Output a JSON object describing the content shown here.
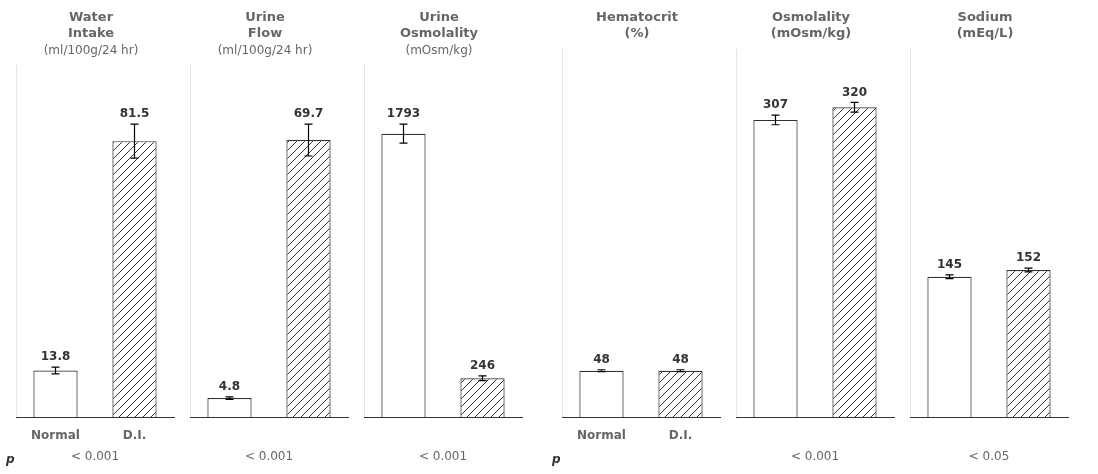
{
  "chart_data": [
    {
      "type": "bar",
      "title": [
        "Water",
        "Intake"
      ],
      "subtitle": "(ml/100g/24 hr)",
      "categories": [
        "Normal",
        "D.I."
      ],
      "values": [
        13.8,
        81.5
      ],
      "errors": [
        1.0,
        5.0
      ],
      "colors": [
        "white",
        "white"
      ],
      "ylim": [
        0,
        103.8
      ],
      "grid": false,
      "tick_labels": "x",
      "data_labels": true,
      "xlabel": "< 0.001",
      "annotations": [
        "p"
      ]
    },
    {
      "type": "bar",
      "title": [
        "Urine",
        "Flow"
      ],
      "subtitle": "(ml/100g/24 hr)",
      "categories": [
        null,
        null
      ],
      "values": [
        4.8,
        69.7
      ],
      "errors": [
        0.3,
        4.0
      ],
      "colors": [
        "white",
        "white"
      ],
      "ylim": [
        0,
        88.44
      ],
      "grid": false,
      "tick_labels": "x",
      "data_labels": true,
      "xlabel": "< 0.001"
    },
    {
      "type": "bar",
      "title": [
        "Urine",
        "Osmolality"
      ],
      "subtitle": "(mOsm/kg)",
      "categories": [
        null,
        null
      ],
      "values": [
        1793,
        246
      ],
      "errors": [
        60,
        15
      ],
      "colors": [
        "white",
        "white"
      ],
      "ylim": [
        0,
        2223.6
      ],
      "grid": false,
      "tick_labels": "x",
      "data_labels": true,
      "xlabel": "< 0.001"
    },
    {
      "type": "bar",
      "title": [
        "Hematocrit",
        "(%)"
      ],
      "categories": [
        "Normal",
        "D.I."
      ],
      "values": [
        48,
        48
      ],
      "errors": [
        1.0,
        1.0
      ],
      "colors": [
        "white",
        "white"
      ],
      "ylim": [
        0,
        380
      ],
      "grid": false,
      "tick_labels": "x",
      "data_labels": true,
      "annotations": [
        "p"
      ]
    },
    {
      "type": "bar",
      "title": [
        "Osmolality",
        "(mOsm/kg)"
      ],
      "categories": [
        null,
        null
      ],
      "values": [
        307,
        320
      ],
      "errors": [
        5,
        5
      ],
      "colors": [
        "white",
        "white"
      ],
      "ylim": [
        0,
        380
      ],
      "grid": false,
      "tick_labels": "x",
      "data_labels": true,
      "xlabel": "< 0.001"
    },
    {
      "type": "bar",
      "title": [
        "Sodium",
        "(mEq/L)"
      ],
      "categories": [
        null,
        null
      ],
      "values": [
        145,
        152
      ],
      "errors": [
        2,
        2
      ],
      "colors": [
        "white",
        "white"
      ],
      "ylim": [
        0,
        380
      ],
      "grid": false,
      "tick_labels": "x",
      "data_labels": true,
      "xlabel": "< 0.05"
    }
  ]
}
